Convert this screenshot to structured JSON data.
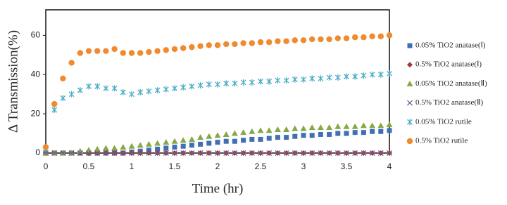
{
  "chart_data": {
    "type": "scatter",
    "x_label": "Time (hr)",
    "y_label": "Δ Transmission(%)",
    "xlim": [
      0,
      4
    ],
    "xticks": [
      0,
      0.5,
      1,
      1.5,
      2,
      2.5,
      3,
      3.5,
      4
    ],
    "ylim": [
      0,
      73
    ],
    "yticks": [
      0,
      20,
      40,
      60
    ],
    "legend": "right",
    "x": [
      0,
      0.1,
      0.2,
      0.3,
      0.4,
      0.5,
      0.6,
      0.7,
      0.8,
      0.9,
      1,
      1.1,
      1.2,
      1.3,
      1.4,
      1.5,
      1.6,
      1.7,
      1.8,
      1.9,
      2,
      2.1,
      2.2,
      2.3,
      2.4,
      2.5,
      2.6,
      2.7,
      2.8,
      2.9,
      3,
      3.1,
      3.2,
      3.3,
      3.4,
      3.5,
      3.6,
      3.7,
      3.8,
      3.9,
      4
    ],
    "series": [
      {
        "name": "0.05% TiO2 anatase(Ⅰ)",
        "color": "#3f6fb5",
        "marker": "square",
        "values": [
          0,
          0,
          0,
          0,
          0,
          0,
          0,
          0,
          0,
          0,
          0.5,
          1,
          1.5,
          2,
          2.5,
          3,
          3.5,
          4,
          4.5,
          5,
          5.5,
          6,
          6,
          6.5,
          7,
          7,
          7.5,
          8,
          8,
          8.5,
          9,
          9,
          9.5,
          9.5,
          10,
          10,
          10.5,
          10.5,
          11,
          11,
          11.5
        ]
      },
      {
        "name": "0.5% TiO2 anatase(Ⅰ)",
        "color": "#9e3a38",
        "marker": "diamond",
        "values": [
          0,
          0,
          0,
          0,
          0,
          0,
          0,
          0,
          0,
          0,
          0,
          0,
          0,
          0,
          0,
          0,
          0,
          0,
          0,
          0,
          0,
          0,
          0,
          0,
          0,
          0,
          0,
          0,
          0,
          0,
          0,
          0,
          0,
          0,
          0,
          0,
          0,
          0,
          0,
          0,
          0
        ]
      },
      {
        "name": "0.05% TiO2 anatase(Ⅱ)",
        "color": "#86a845",
        "marker": "triangle",
        "values": [
          0,
          0,
          0,
          0,
          1,
          1.5,
          2,
          2.5,
          2.5,
          3,
          3.5,
          4,
          4.5,
          5,
          5.5,
          6,
          6.5,
          7,
          8,
          8.5,
          9,
          9.5,
          10,
          10.5,
          11,
          11.5,
          11.5,
          12,
          12,
          12.5,
          12.5,
          13,
          13,
          13,
          13.5,
          13.5,
          13.5,
          14,
          14,
          14,
          14.5
        ]
      },
      {
        "name": "0.5% TiO2 anatase(Ⅱ)",
        "color": "#6e5a8e",
        "marker": "x",
        "values": [
          0,
          0,
          0,
          0,
          0,
          0,
          0,
          0,
          0,
          0,
          0,
          0,
          0,
          0,
          0,
          0,
          0,
          0,
          0,
          0,
          0,
          0,
          0,
          0,
          0,
          0,
          0,
          0,
          0,
          0,
          0,
          0,
          0,
          0,
          0,
          0,
          0,
          0,
          0,
          0,
          0
        ]
      },
      {
        "name": "0.05% TiO2 rutile",
        "color": "#4bacc6",
        "marker": "asterisk",
        "values": [
          2,
          22,
          28,
          30,
          32,
          34,
          34,
          33,
          33,
          31,
          30,
          31,
          31.5,
          32,
          32.5,
          33,
          33.5,
          34,
          34.5,
          35,
          35,
          35.5,
          35.5,
          36,
          36,
          36.5,
          36.5,
          37,
          37,
          37.5,
          37.5,
          38,
          38,
          38.5,
          38.5,
          39,
          39,
          39.5,
          40,
          40,
          40.5
        ]
      },
      {
        "name": "0.5% TiO2 rutile",
        "color": "#f08a2e",
        "marker": "circle",
        "values": [
          3,
          25,
          38,
          46,
          51,
          52,
          52,
          52,
          53,
          51,
          51,
          51,
          51.5,
          52,
          52.5,
          53,
          53.5,
          54,
          54.5,
          55,
          55,
          55.5,
          55.5,
          56,
          56,
          56.5,
          56.5,
          57,
          57,
          57.5,
          57.5,
          58,
          58,
          58,
          58.5,
          58.5,
          59,
          59,
          59.5,
          59.5,
          60
        ]
      }
    ]
  }
}
